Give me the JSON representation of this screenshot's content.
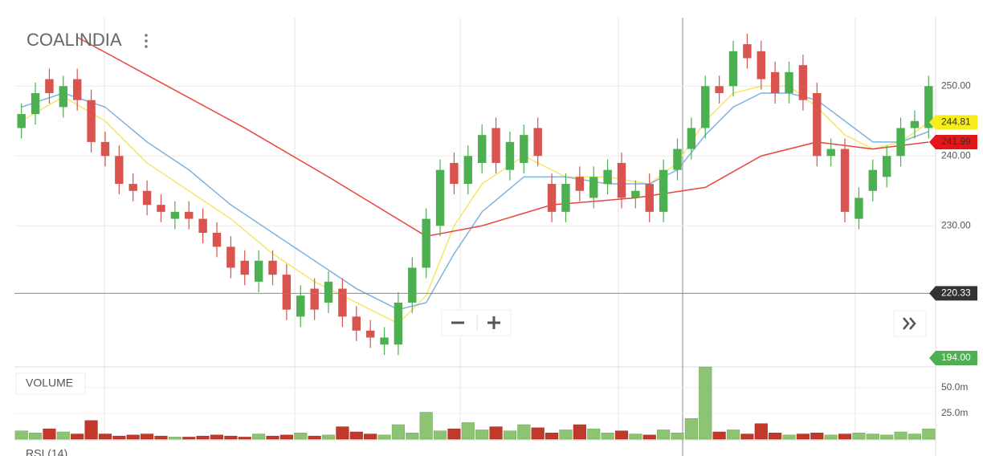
{
  "chart_data": {
    "type": "candlestick",
    "title": "COALINDIA",
    "ylim": [
      209.8,
      259.8
    ],
    "yticks": [
      {
        "value": 250,
        "label": "250.00"
      },
      {
        "value": 240,
        "label": "240.00"
      },
      {
        "value": 230,
        "label": "230.00"
      }
    ],
    "grid": true,
    "up_color": "#4caf50",
    "down_color": "#d9534f",
    "open": [
      244,
      246,
      251,
      247,
      251,
      248,
      242,
      240,
      236,
      235,
      233,
      231,
      232,
      231,
      229,
      227,
      225,
      222,
      225,
      223,
      217,
      221,
      219,
      221,
      217,
      215,
      213,
      213,
      219,
      224,
      230,
      239,
      236,
      239,
      244,
      238,
      239,
      244,
      236,
      232,
      237,
      234,
      236,
      239,
      234,
      236,
      232,
      238,
      241,
      244,
      250,
      250,
      256,
      255,
      252,
      249,
      253,
      249,
      240,
      241,
      231,
      235,
      237,
      240,
      244,
      244
    ],
    "high": [
      247.5,
      250.5,
      252.5,
      251.5,
      252.5,
      249.5,
      243.5,
      241.5,
      237.5,
      236.5,
      234.5,
      233.5,
      233.5,
      232.5,
      230.5,
      228.5,
      226.5,
      226.5,
      226.5,
      224.5,
      221.5,
      222.5,
      223.5,
      222.5,
      218.5,
      216.5,
      215.5,
      220.5,
      225.5,
      232.5,
      239.5,
      240.5,
      241.5,
      244.5,
      245.5,
      243.5,
      244.5,
      245.5,
      237.5,
      237.5,
      238.5,
      238.5,
      239.5,
      240.5,
      236.5,
      237.5,
      239.5,
      242.5,
      245.5,
      251.5,
      251.5,
      256.5,
      257.5,
      256.5,
      253.5,
      253.5,
      254.5,
      250.5,
      242.5,
      242.5,
      235.5,
      239.5,
      241.5,
      245.5,
      246.5,
      251.5
    ],
    "low": [
      242.5,
      244.5,
      247.5,
      245.5,
      246.5,
      240.5,
      238.5,
      234.5,
      233.5,
      231.5,
      230.5,
      229.5,
      229.5,
      227.5,
      225.5,
      222.5,
      221.5,
      220.5,
      221.5,
      216.5,
      215.5,
      216.5,
      217.5,
      215.5,
      213.5,
      212.5,
      211.5,
      211.5,
      217.5,
      222.5,
      228.5,
      234.5,
      234.5,
      237.5,
      237.5,
      236.5,
      237.5,
      238.5,
      230.5,
      230.5,
      233.5,
      232.5,
      234.5,
      232.5,
      232.5,
      230.5,
      230.5,
      236.5,
      239.5,
      242.5,
      247.5,
      248.5,
      252.5,
      249.5,
      247.5,
      247.5,
      246.5,
      238.5,
      238.5,
      230.5,
      229.5,
      233.5,
      235.5,
      238.5,
      242.5,
      242.5
    ],
    "close": [
      246,
      249,
      249,
      250,
      248,
      242,
      240,
      236,
      235,
      233,
      232,
      232,
      231,
      229,
      227,
      224,
      223,
      225,
      223,
      218,
      220,
      218,
      222,
      217,
      215,
      214,
      214,
      219,
      224,
      231,
      238,
      236,
      240,
      243,
      239,
      242,
      243,
      240,
      232,
      236,
      235,
      237,
      238,
      234,
      235,
      232,
      238,
      241,
      244,
      250,
      249,
      255,
      254,
      251,
      249,
      252,
      248,
      240,
      241,
      232,
      234,
      238,
      240,
      244,
      245,
      250
    ],
    "lines": [
      {
        "color": "#f5e663",
        "label": "244.81",
        "x": [
          0,
          3,
          6,
          9,
          12,
          15,
          18,
          21,
          24,
          27,
          29,
          31,
          33,
          36,
          39,
          42,
          45,
          47,
          49,
          51,
          53,
          55,
          57,
          59,
          61,
          63,
          65
        ],
        "values": [
          245,
          248.5,
          245,
          239,
          235,
          231,
          226,
          222,
          219,
          216,
          220,
          230,
          236,
          240,
          237,
          237,
          236,
          239,
          245,
          249,
          250,
          250,
          247,
          243,
          241,
          242,
          244.81
        ]
      },
      {
        "color": "#7fb2de",
        "x": [
          0,
          3,
          6,
          9,
          12,
          15,
          18,
          21,
          24,
          27,
          29,
          31,
          33,
          36,
          39,
          42,
          45,
          47,
          49,
          51,
          53,
          55,
          57,
          59,
          61,
          63,
          65
        ],
        "values": [
          247,
          249,
          247,
          242,
          238,
          233,
          229,
          225,
          221,
          218,
          219,
          226,
          232,
          237,
          237,
          236,
          236,
          238,
          243,
          247,
          249,
          249,
          248,
          245,
          242,
          242,
          243.5
        ]
      },
      {
        "color": "#e8463c",
        "label": "241.99",
        "x": [
          4,
          10,
          16,
          22,
          29,
          33,
          38,
          44,
          49,
          53,
          57,
          61,
          65
        ],
        "values": [
          257,
          250.5,
          244,
          237,
          228.5,
          230,
          233,
          234,
          235.5,
          240,
          242,
          241,
          241.99
        ]
      }
    ],
    "crosshair": {
      "value": 220.33,
      "label": "220.33"
    },
    "flag_label": "194.00",
    "volume": {
      "title": "VOLUME",
      "ylim": [
        0,
        70
      ],
      "yticks": [
        {
          "value": 50,
          "label": "50.0m"
        },
        {
          "value": 25,
          "label": "25.0m"
        }
      ],
      "up_color": "#8cc474",
      "down_color": "#c0392b",
      "values": [
        8,
        6,
        10,
        7,
        5,
        18,
        5,
        3,
        4,
        5,
        3,
        2,
        2,
        3,
        4,
        3,
        2,
        5,
        3,
        4,
        6,
        3,
        4,
        12,
        7,
        5,
        4,
        14,
        6,
        26,
        8,
        10,
        16,
        9,
        12,
        8,
        14,
        11,
        6,
        9,
        14,
        10,
        6,
        8,
        5,
        4,
        9,
        6,
        20,
        70,
        7,
        9,
        5,
        15,
        6,
        4,
        5,
        6,
        4,
        5,
        6,
        5,
        4,
        7,
        5,
        10
      ]
    },
    "indicator_title": "RSI (14)"
  }
}
